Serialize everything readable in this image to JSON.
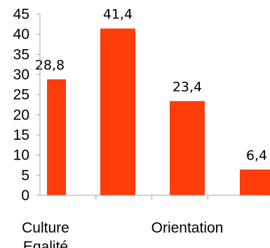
{
  "chart_data": {
    "type": "bar",
    "categories": [
      "Culture",
      "Egalité",
      "Orientation",
      ""
    ],
    "values": [
      28.8,
      41.4,
      23.4,
      6.4
    ],
    "value_labels": [
      "28,8",
      "41,4",
      "23,4",
      "6,4"
    ],
    "ylim": [
      0,
      45
    ],
    "y_ticks": [
      "0",
      "5",
      "10",
      "15",
      "20",
      "25",
      "30",
      "35",
      "40",
      "45"
    ],
    "grid": false,
    "legend": "none",
    "bar_color": "#ff3d0b"
  }
}
